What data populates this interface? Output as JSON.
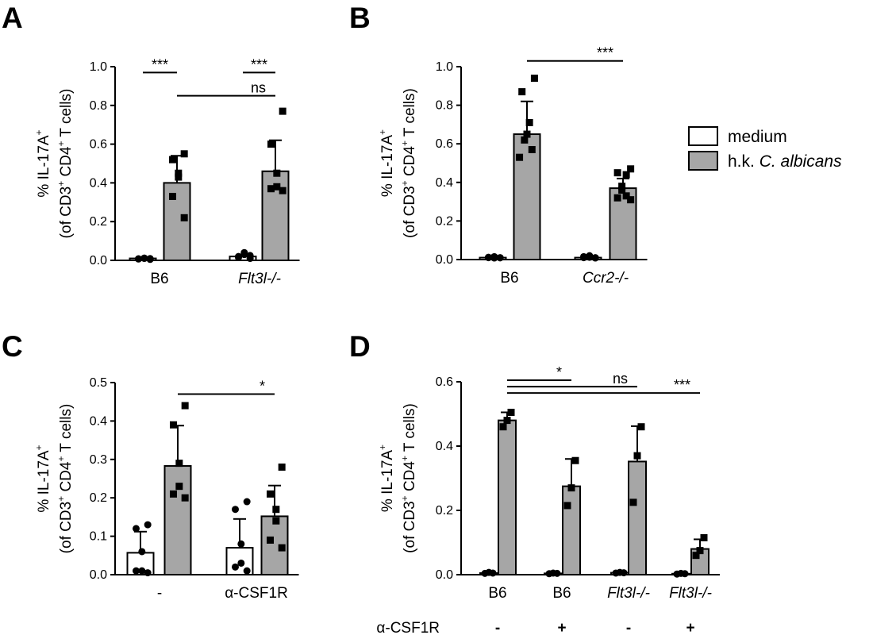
{
  "legend": [
    {
      "label": "medium",
      "color": "#ffffff"
    },
    {
      "label": "h.k. ",
      "label_italic": "C. albicans",
      "color": "#a6a6a6"
    }
  ],
  "colors": {
    "medium": "#ffffff",
    "treated": "#a6a6a6",
    "stroke": "#000000"
  },
  "ylabel": {
    "line1_pre": "% IL-17A",
    "line1_sup": "+",
    "line2_a": "(of CD3",
    "line2_sup1": "+",
    "line2_b": " CD4",
    "line2_sup2": "+",
    "line2_c": " T cells)"
  },
  "chart_data": [
    {
      "panel": "A",
      "type": "bar",
      "ylim": [
        0,
        1.0
      ],
      "yticks": [
        "0.0",
        "0.2",
        "0.4",
        "0.6",
        "0.8",
        "1.0"
      ],
      "groups": [
        {
          "label": "B6",
          "italic": false,
          "bars": [
            {
              "cond": "medium",
              "mean": 0.01,
              "sd": 0.005,
              "points": [
                0.005,
                0.008,
                0.01,
                0.012,
                0.007,
                0.009
              ]
            },
            {
              "cond": "treated",
              "mean": 0.4,
              "sd": 0.14,
              "points": [
                0.55,
                0.52,
                0.45,
                0.43,
                0.33,
                0.22
              ]
            }
          ]
        },
        {
          "label": "Flt3l-/-",
          "italic": true,
          "bars": [
            {
              "cond": "medium",
              "mean": 0.02,
              "sd": 0.01,
              "points": [
                0.01,
                0.02,
                0.03,
                0.04,
                0.015,
                0.025
              ]
            },
            {
              "cond": "treated",
              "mean": 0.46,
              "sd": 0.16,
              "points": [
                0.77,
                0.6,
                0.45,
                0.38,
                0.37,
                0.36
              ]
            }
          ]
        }
      ],
      "sig": [
        {
          "from": [
            0,
            0
          ],
          "to": [
            0,
            1
          ],
          "y": 0.97,
          "label": "***"
        },
        {
          "from": [
            1,
            0
          ],
          "to": [
            1,
            1
          ],
          "y": 0.97,
          "label": "***"
        },
        {
          "from": [
            0,
            1
          ],
          "to": [
            1,
            1
          ],
          "y": 0.85,
          "label": "ns"
        }
      ]
    },
    {
      "panel": "B",
      "type": "bar",
      "ylim": [
        0,
        1.0
      ],
      "yticks": [
        "0.0",
        "0.2",
        "0.4",
        "0.6",
        "0.8",
        "1.0"
      ],
      "groups": [
        {
          "label": "B6",
          "italic": false,
          "bars": [
            {
              "cond": "medium",
              "mean": 0.01,
              "sd": 0.005,
              "points": [
                0.01,
                0.012,
                0.008,
                0.015,
                0.01,
                0.009
              ]
            },
            {
              "cond": "treated",
              "mean": 0.65,
              "sd": 0.17,
              "points": [
                0.94,
                0.87,
                0.71,
                0.65,
                0.62,
                0.57,
                0.53
              ]
            }
          ]
        },
        {
          "label": "Ccr2-/-",
          "italic": true,
          "bars": [
            {
              "cond": "medium",
              "mean": 0.01,
              "sd": 0.005,
              "points": [
                0.01,
                0.015,
                0.012,
                0.02,
                0.01,
                0.008
              ]
            },
            {
              "cond": "treated",
              "mean": 0.37,
              "sd": 0.05,
              "points": [
                0.47,
                0.45,
                0.44,
                0.38,
                0.36,
                0.33,
                0.32,
                0.31
              ]
            }
          ]
        }
      ],
      "sig": [
        {
          "from": [
            0,
            1
          ],
          "to": [
            1,
            1
          ],
          "y": 1.03,
          "label": "***"
        }
      ]
    },
    {
      "panel": "C",
      "type": "bar",
      "ylim": [
        0,
        0.5
      ],
      "yticks": [
        "0.0",
        "0.1",
        "0.2",
        "0.3",
        "0.4",
        "0.5"
      ],
      "groups": [
        {
          "label": "-",
          "italic": false,
          "bars": [
            {
              "cond": "medium",
              "mean": 0.057,
              "sd": 0.055,
              "points": [
                0.13,
                0.12,
                0.06,
                0.01,
                0.01,
                0.005
              ]
            },
            {
              "cond": "treated",
              "mean": 0.283,
              "sd": 0.105,
              "points": [
                0.44,
                0.39,
                0.29,
                0.23,
                0.21,
                0.2
              ]
            }
          ]
        },
        {
          "label": "α-CSF1R",
          "italic": false,
          "bars": [
            {
              "cond": "medium",
              "mean": 0.07,
              "sd": 0.075,
              "points": [
                0.19,
                0.17,
                0.08,
                0.03,
                0.02,
                0.01
              ]
            },
            {
              "cond": "treated",
              "mean": 0.152,
              "sd": 0.08,
              "points": [
                0.28,
                0.21,
                0.17,
                0.14,
                0.09,
                0.07
              ]
            }
          ]
        }
      ],
      "sig": [
        {
          "from": [
            0,
            1
          ],
          "to": [
            1,
            1
          ],
          "y": 0.47,
          "label": "*"
        }
      ]
    },
    {
      "panel": "D",
      "type": "bar",
      "ylim": [
        0,
        0.6
      ],
      "yticks": [
        "0.0",
        "0.2",
        "0.4",
        "0.6"
      ],
      "groups": [
        {
          "label": "B6",
          "italic": false,
          "sub": "-",
          "bars": [
            {
              "cond": "medium",
              "mean": 0.005,
              "sd": 0.002,
              "points": [
                0.005,
                0.007,
                0.004
              ]
            },
            {
              "cond": "treated",
              "mean": 0.48,
              "sd": 0.025,
              "points": [
                0.505,
                0.48,
                0.46
              ]
            }
          ]
        },
        {
          "label": "B6",
          "italic": false,
          "sub": "+",
          "bars": [
            {
              "cond": "medium",
              "mean": 0.004,
              "sd": 0.002,
              "points": [
                0.004,
                0.005,
                0.003
              ]
            },
            {
              "cond": "treated",
              "mean": 0.275,
              "sd": 0.085,
              "points": [
                0.355,
                0.27,
                0.215
              ]
            }
          ]
        },
        {
          "label": "Flt3l-/-",
          "italic": true,
          "sub": "-",
          "bars": [
            {
              "cond": "medium",
              "mean": 0.006,
              "sd": 0.002,
              "points": [
                0.006,
                0.007,
                0.005
              ]
            },
            {
              "cond": "treated",
              "mean": 0.352,
              "sd": 0.11,
              "points": [
                0.46,
                0.37,
                0.225
              ]
            }
          ]
        },
        {
          "label": "Flt3l-/-",
          "italic": true,
          "sub": "+",
          "bars": [
            {
              "cond": "medium",
              "mean": 0.003,
              "sd": 0.002,
              "points": [
                0.003,
                0.004,
                0.002
              ]
            },
            {
              "cond": "treated",
              "mean": 0.08,
              "sd": 0.03,
              "points": [
                0.115,
                0.075,
                0.06
              ]
            }
          ]
        }
      ],
      "sig": [
        {
          "from": [
            0,
            1
          ],
          "to": [
            1,
            1
          ],
          "y": 0.605,
          "label": "*"
        },
        {
          "from": [
            0,
            1
          ],
          "to": [
            2,
            1
          ],
          "y": 0.585,
          "label": "ns"
        },
        {
          "from": [
            0,
            1
          ],
          "to": [
            3,
            1
          ],
          "y": 0.565,
          "label": "***"
        }
      ],
      "row_label": "α-CSF1R"
    }
  ]
}
